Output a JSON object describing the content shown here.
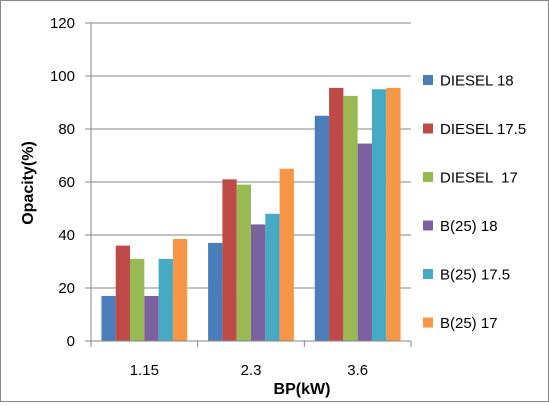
{
  "chart_data": {
    "type": "bar",
    "title": "",
    "xlabel": "BP(kW)",
    "ylabel": "Opacity(%)",
    "ylim": [
      0,
      120
    ],
    "yticks": [
      0,
      20,
      40,
      60,
      80,
      100,
      120
    ],
    "grid": true,
    "legend_position": "right",
    "categories": [
      "1.15",
      "2.3",
      "3.6"
    ],
    "series": [
      {
        "name": "DIESEL 18",
        "color": "#4a7ebb",
        "values": [
          17,
          37,
          85
        ]
      },
      {
        "name": "DIESEL 17.5",
        "color": "#be4b48",
        "values": [
          36,
          61,
          95.5
        ]
      },
      {
        "name": "DIESEL  17",
        "color": "#98b954",
        "values": [
          31,
          59,
          92.5
        ]
      },
      {
        "name": "B(25) 18",
        "color": "#7d60a0",
        "values": [
          17,
          44,
          74.5
        ]
      },
      {
        "name": "B(25) 17.5",
        "color": "#46aac5",
        "values": [
          31,
          48,
          95
        ]
      },
      {
        "name": "B(25) 17",
        "color": "#f79646",
        "values": [
          38.5,
          65,
          95.5
        ]
      }
    ]
  }
}
